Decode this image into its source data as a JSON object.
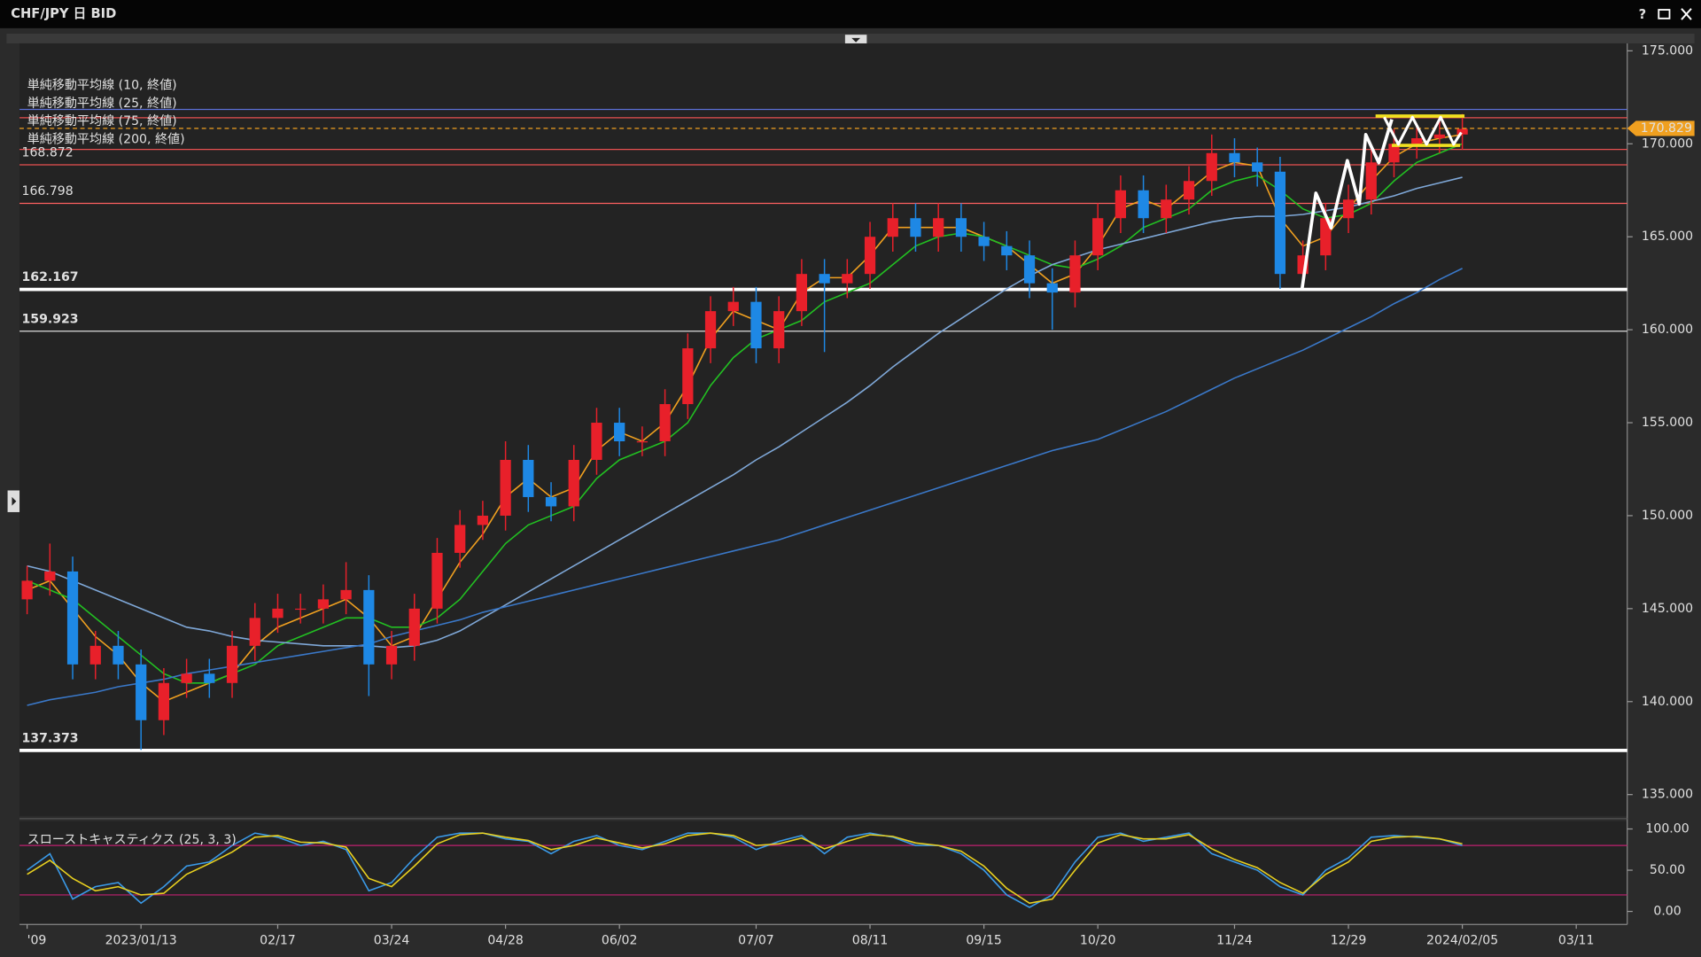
{
  "window": {
    "title": "CHF/JPY 日 BID",
    "help": "?"
  },
  "chart_data": [
    {
      "type": "candlestick",
      "categories": [
        "'09",
        null,
        null,
        null,
        null,
        "2023/01/13",
        null,
        null,
        null,
        null,
        null,
        "02/17",
        null,
        null,
        null,
        null,
        "03/24",
        null,
        null,
        null,
        null,
        "04/28",
        null,
        null,
        null,
        null,
        "06/02",
        null,
        null,
        null,
        null,
        null,
        "07/07",
        null,
        null,
        null,
        null,
        "08/11",
        null,
        null,
        null,
        null,
        "09/15",
        null,
        null,
        null,
        null,
        "10/20",
        null,
        null,
        null,
        null,
        null,
        "11/24",
        null,
        null,
        null,
        null,
        "12/29",
        null,
        null,
        null,
        null,
        "2024/02/05",
        null,
        null,
        null,
        null,
        "03/11",
        null,
        null
      ],
      "open": [
        145.5,
        146.5,
        147,
        142,
        143,
        142,
        139,
        141,
        141.5,
        141,
        143,
        144.5,
        145,
        145,
        145.5,
        146,
        142,
        143,
        145,
        148,
        149.5,
        150,
        153,
        151,
        150.5,
        153,
        155,
        154,
        154,
        156,
        159,
        161,
        161.5,
        159,
        161,
        163,
        162.5,
        163,
        165,
        166,
        165,
        166,
        165,
        164.5,
        164,
        162.5,
        162,
        164,
        166,
        167.5,
        166,
        167,
        168,
        169.5,
        169,
        168.5,
        163,
        164,
        166,
        167,
        169,
        170,
        170.3,
        170.5,
        null,
        null,
        null,
        null,
        null,
        null,
        null
      ],
      "high": [
        147.3,
        148.5,
        147.8,
        143.8,
        143.8,
        142.8,
        141.8,
        142.3,
        142.3,
        143.8,
        145.3,
        145.8,
        145.8,
        146.3,
        147.5,
        146.8,
        143.8,
        145.8,
        148.8,
        150.3,
        150.8,
        154,
        153.8,
        151.8,
        153.8,
        155.8,
        155.8,
        154.8,
        156.8,
        159.8,
        161.8,
        162.3,
        162.3,
        161.8,
        163.8,
        163.8,
        163.8,
        165.8,
        166.8,
        166.8,
        166.8,
        166.8,
        165.8,
        165.3,
        164.8,
        163.3,
        164.8,
        166.8,
        168.3,
        168.3,
        167.8,
        168.8,
        170.5,
        170.3,
        169.8,
        169.3,
        164.8,
        166.8,
        167.8,
        169.8,
        170.8,
        171.1,
        171.4,
        171.6,
        null,
        null,
        null,
        null,
        null,
        null,
        null
      ],
      "low": [
        144.7,
        145.7,
        141.2,
        141.2,
        141.2,
        137.4,
        138.2,
        140.2,
        140.2,
        140.2,
        142.2,
        143.7,
        144.2,
        144.2,
        144.7,
        140.3,
        141.2,
        142.2,
        144.2,
        147.2,
        148.7,
        149.2,
        150.2,
        149.7,
        149.7,
        152.2,
        153.2,
        153.2,
        153.2,
        155.2,
        158.2,
        160.2,
        158.2,
        158.2,
        160.2,
        158.8,
        161.7,
        162.2,
        164.2,
        164.2,
        164.2,
        164.2,
        163.7,
        163.2,
        161.7,
        160,
        161.2,
        163.2,
        165.2,
        165.2,
        165.2,
        166.2,
        167.2,
        168.2,
        167.7,
        162.2,
        162.2,
        163.2,
        165.2,
        166.2,
        168.2,
        169.2,
        169.5,
        169.7,
        null,
        null,
        null,
        null,
        null,
        null,
        null
      ],
      "close": [
        146.5,
        147,
        142,
        143,
        142,
        139,
        141,
        141.5,
        141,
        143,
        144.5,
        145,
        145,
        145.5,
        146,
        142,
        143,
        145,
        148,
        149.5,
        150,
        153,
        151,
        150.5,
        153,
        155,
        154,
        154,
        156,
        159,
        161,
        161.5,
        159,
        161,
        163,
        162.5,
        163,
        165,
        166,
        165,
        166,
        165,
        164.5,
        164,
        162.5,
        162,
        164,
        166,
        167.5,
        166,
        167,
        168,
        169.5,
        169,
        168.5,
        163,
        164,
        166,
        167,
        169,
        170,
        170.3,
        170.5,
        170.8,
        null,
        null,
        null,
        null,
        null,
        null,
        null
      ],
      "up_color": "#e8202a",
      "down_color": "#1e88e5",
      "series": [
        {
          "name": "単純移動平均線 (10, 終値)",
          "color": "#f0a020",
          "values": [
            146,
            146.5,
            145,
            143.5,
            142.5,
            141,
            140,
            140.5,
            141,
            141.5,
            143,
            144,
            144.5,
            145,
            145.5,
            144.5,
            143,
            143.5,
            145.5,
            147.5,
            149,
            151,
            152,
            151,
            151.5,
            153.5,
            154.5,
            154,
            155,
            157,
            159.5,
            161,
            160.5,
            160,
            162,
            162.8,
            162.8,
            164,
            165.5,
            165.5,
            165.5,
            165.5,
            165,
            164.5,
            163.5,
            162.5,
            163,
            164.5,
            166.5,
            167,
            166.5,
            167.5,
            168.5,
            169,
            168.8,
            166,
            164.5,
            165,
            166.5,
            168,
            169.3,
            170,
            170.3,
            170.5,
            null,
            null,
            null,
            null,
            null,
            null,
            null
          ]
        },
        {
          "name": "単純移動平均線 (25, 終値)",
          "color": "#22c022",
          "values": [
            146.5,
            146,
            145.5,
            144.5,
            143.5,
            142.5,
            141.5,
            141,
            141,
            141.5,
            142,
            143,
            143.5,
            144,
            144.5,
            144.5,
            144,
            144,
            144.5,
            145.5,
            147,
            148.5,
            149.5,
            150,
            150.5,
            152,
            153,
            153.5,
            154,
            155,
            157,
            158.5,
            159.5,
            160,
            160.5,
            161.5,
            162,
            162.5,
            163.5,
            164.5,
            165,
            165.2,
            165,
            164.5,
            164,
            163.5,
            163.3,
            163.8,
            164.5,
            165.5,
            166,
            166.5,
            167.5,
            168,
            168.3,
            167.5,
            166.5,
            166,
            166.2,
            166.8,
            168,
            169,
            169.5,
            170,
            null,
            null,
            null,
            null,
            null,
            null,
            null
          ]
        },
        {
          "name": "単純移動平均線 (75, 終値)",
          "color": "#7fa8d8",
          "values": [
            147.3,
            147,
            146.5,
            146,
            145.5,
            145,
            144.5,
            144,
            143.8,
            143.5,
            143.3,
            143.2,
            143.1,
            143,
            143,
            143,
            142.9,
            143,
            143.3,
            143.8,
            144.5,
            145.2,
            145.9,
            146.6,
            147.3,
            148,
            148.7,
            149.4,
            150.1,
            150.8,
            151.5,
            152.2,
            153,
            153.7,
            154.5,
            155.3,
            156.1,
            157,
            158,
            158.9,
            159.8,
            160.6,
            161.4,
            162.2,
            162.9,
            163.5,
            163.9,
            164.3,
            164.6,
            164.9,
            165.2,
            165.5,
            165.8,
            166,
            166.1,
            166.1,
            166.2,
            166.4,
            166.6,
            166.9,
            167.2,
            167.6,
            167.9,
            168.2,
            null,
            null,
            null,
            null,
            null,
            null,
            null
          ]
        },
        {
          "name": "単純移動平均線 (200, 終値)",
          "color": "#3a78c8",
          "values": [
            139.8,
            140.1,
            140.3,
            140.5,
            140.8,
            141,
            141.2,
            141.5,
            141.7,
            141.9,
            142.1,
            142.3,
            142.5,
            142.7,
            142.9,
            143.1,
            143.5,
            143.8,
            144.1,
            144.4,
            144.8,
            145.1,
            145.4,
            145.7,
            146,
            146.3,
            146.6,
            146.9,
            147.2,
            147.5,
            147.8,
            148.1,
            148.4,
            148.7,
            149.1,
            149.5,
            149.9,
            150.3,
            150.7,
            151.1,
            151.5,
            151.9,
            152.3,
            152.7,
            153.1,
            153.5,
            153.8,
            154.1,
            154.6,
            155.1,
            155.6,
            156.2,
            156.8,
            157.4,
            157.9,
            158.4,
            158.9,
            159.5,
            160.1,
            160.7,
            161.4,
            162,
            162.7,
            163.3,
            null,
            null,
            null,
            null,
            null,
            null,
            null
          ]
        }
      ],
      "levels": [
        {
          "value": 171.85,
          "color": "#5a6fd6",
          "weight": "thin",
          "labeled": false
        },
        {
          "value": 171.4,
          "color": "#e85050",
          "weight": "thin",
          "labeled": false
        },
        {
          "value": 169.7,
          "color": "#e85050",
          "weight": "thin",
          "labeled": false
        },
        {
          "value": 168.872,
          "color": "#e85050",
          "weight": "thin",
          "labeled": true
        },
        {
          "value": 166.798,
          "color": "#ff6060",
          "weight": "thin",
          "labeled": true
        },
        {
          "value": 162.167,
          "color": "#ffffff",
          "weight": "thick",
          "labeled": true
        },
        {
          "value": 159.923,
          "color": "#dddddd",
          "weight": "thin",
          "labeled": true
        },
        {
          "value": 137.373,
          "color": "#ffffff",
          "weight": "thick",
          "labeled": true
        }
      ],
      "last_price": 170.829,
      "last_price_color": "#f0a020",
      "ylim": [
        133.85,
        175.4
      ],
      "yticks": [
        {
          "value": 135,
          "label": "135.000"
        },
        {
          "value": 140,
          "label": "140.000"
        },
        {
          "value": 145,
          "label": "145.000"
        },
        {
          "value": 150,
          "label": "150.000"
        },
        {
          "value": 155,
          "label": "155.000"
        },
        {
          "value": 160,
          "label": "160.000"
        },
        {
          "value": 165,
          "label": "165.000"
        },
        {
          "value": 170,
          "label": "170.000"
        },
        {
          "value": 175,
          "label": "175.000"
        }
      ],
      "grid": false
    },
    {
      "type": "line",
      "title": "スローストキャスティクス (25, 3, 3)",
      "title_color": "#4a9ad8",
      "series": [
        {
          "color": "#3a9ae8",
          "values": [
            50,
            70,
            15,
            30,
            35,
            10,
            30,
            55,
            60,
            80,
            95,
            90,
            80,
            85,
            75,
            25,
            35,
            65,
            90,
            95,
            95,
            88,
            85,
            70,
            85,
            92,
            80,
            75,
            85,
            95,
            95,
            90,
            75,
            85,
            92,
            70,
            90,
            95,
            90,
            80,
            80,
            70,
            50,
            20,
            5,
            20,
            60,
            90,
            95,
            85,
            90,
            95,
            70,
            60,
            50,
            30,
            20,
            50,
            65,
            90,
            92,
            90,
            88,
            80,
            null,
            null,
            null,
            null,
            null,
            null,
            null
          ]
        },
        {
          "color": "#e8d020",
          "values": [
            45,
            62,
            40,
            25,
            30,
            20,
            22,
            45,
            58,
            72,
            90,
            92,
            84,
            83,
            78,
            40,
            30,
            55,
            82,
            93,
            95,
            90,
            86,
            75,
            80,
            89,
            83,
            77,
            82,
            92,
            95,
            92,
            80,
            82,
            89,
            76,
            85,
            93,
            91,
            83,
            80,
            73,
            55,
            28,
            10,
            15,
            50,
            83,
            93,
            88,
            88,
            93,
            76,
            63,
            53,
            35,
            22,
            45,
            60,
            85,
            90,
            91,
            88,
            82,
            null,
            null,
            null,
            null,
            null,
            null,
            null
          ]
        }
      ],
      "levels": [
        {
          "value": 80,
          "color": "#c02070"
        },
        {
          "value": 20,
          "color": "#c02070"
        }
      ],
      "ylim": [
        -15.8,
        109.2
      ],
      "yticks": [
        {
          "value": 0,
          "label": "0.00"
        },
        {
          "value": 50,
          "label": "50.00"
        },
        {
          "value": 100,
          "label": "100.00"
        }
      ],
      "grid": false
    }
  ]
}
